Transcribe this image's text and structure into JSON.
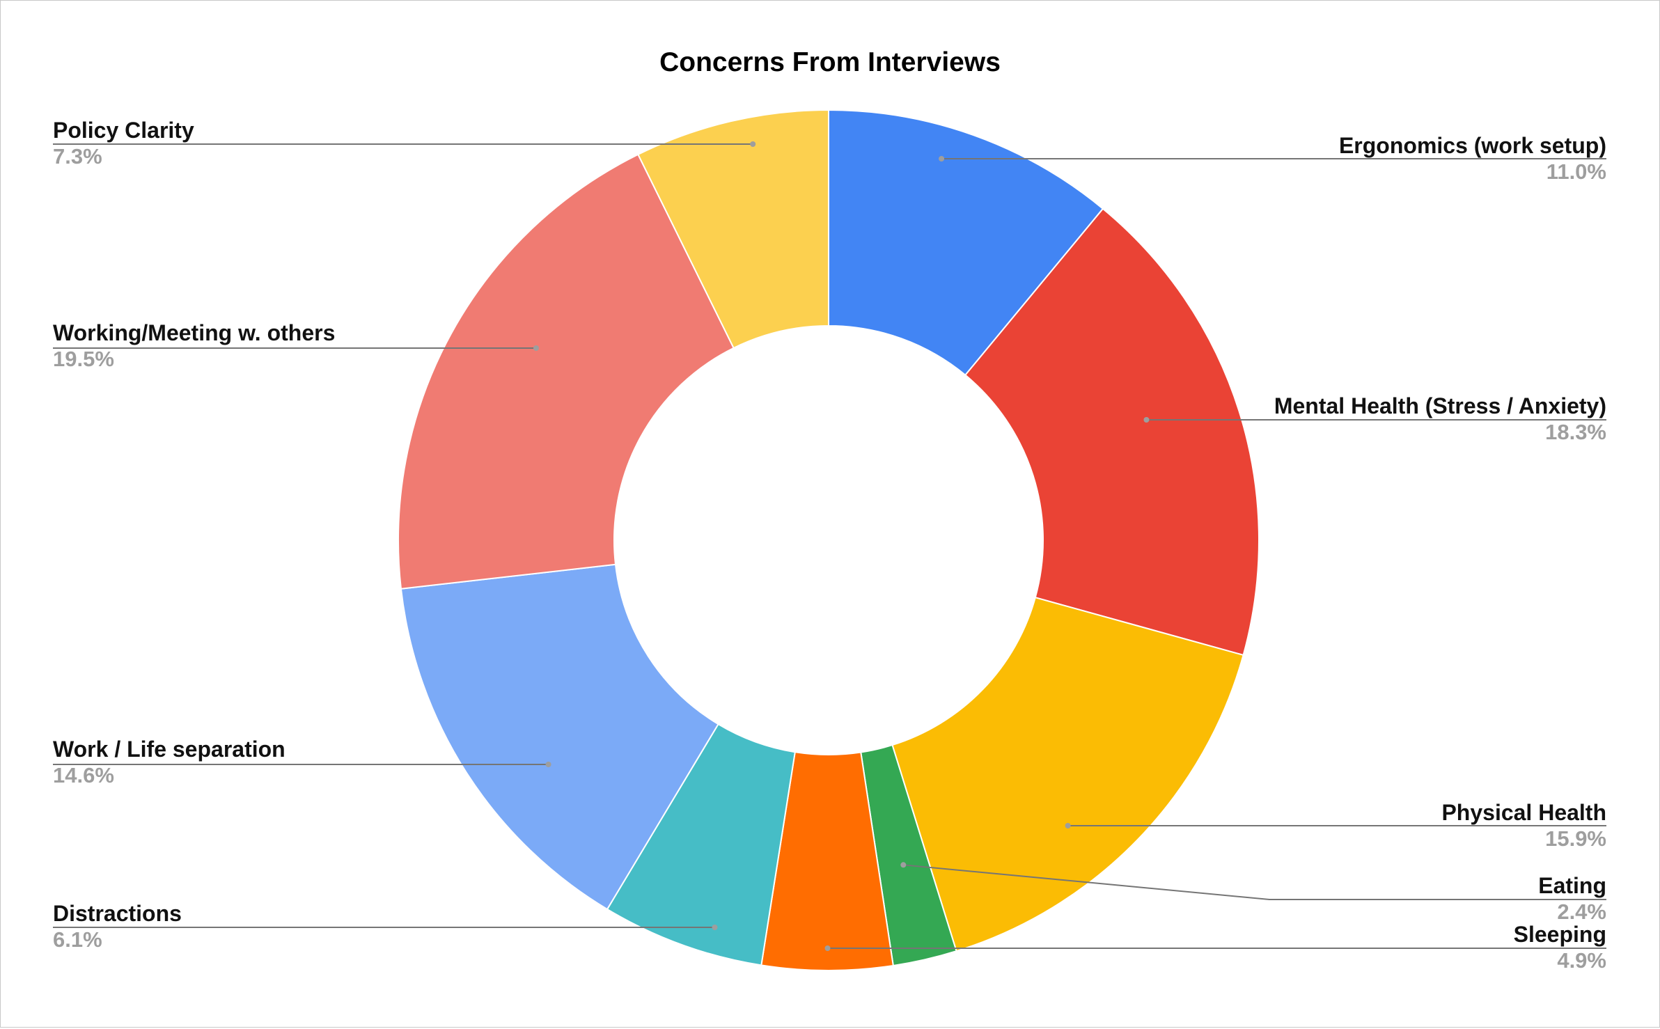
{
  "chart_data": {
    "type": "pie",
    "donut": true,
    "title": "Concerns From Interviews",
    "legend": "labels with leader lines",
    "slices": [
      {
        "label": "Ergonomics (work setup)",
        "value": 11.0,
        "percent_label": "11.0%",
        "color": "#4285F4"
      },
      {
        "label": "Mental Health (Stress / Anxiety)",
        "value": 18.3,
        "percent_label": "18.3%",
        "color": "#EA4335"
      },
      {
        "label": "Physical Health",
        "value": 15.9,
        "percent_label": "15.9%",
        "color": "#FBBC04"
      },
      {
        "label": "Eating",
        "value": 2.4,
        "percent_label": "2.4%",
        "color": "#34A853"
      },
      {
        "label": "Sleeping",
        "value": 4.9,
        "percent_label": "4.9%",
        "color": "#FF6D01"
      },
      {
        "label": "Distractions",
        "value": 6.1,
        "percent_label": "6.1%",
        "color": "#46BDC6"
      },
      {
        "label": "Work / Life separation",
        "value": 14.6,
        "percent_label": "14.6%",
        "color": "#7BAAF7"
      },
      {
        "label": "Working/Meeting w. others",
        "value": 19.5,
        "percent_label": "19.5%",
        "color": "#F07B72"
      },
      {
        "label": "Policy Clarity",
        "value": 7.3,
        "percent_label": "7.3%",
        "color": "#FCD04F"
      }
    ]
  }
}
